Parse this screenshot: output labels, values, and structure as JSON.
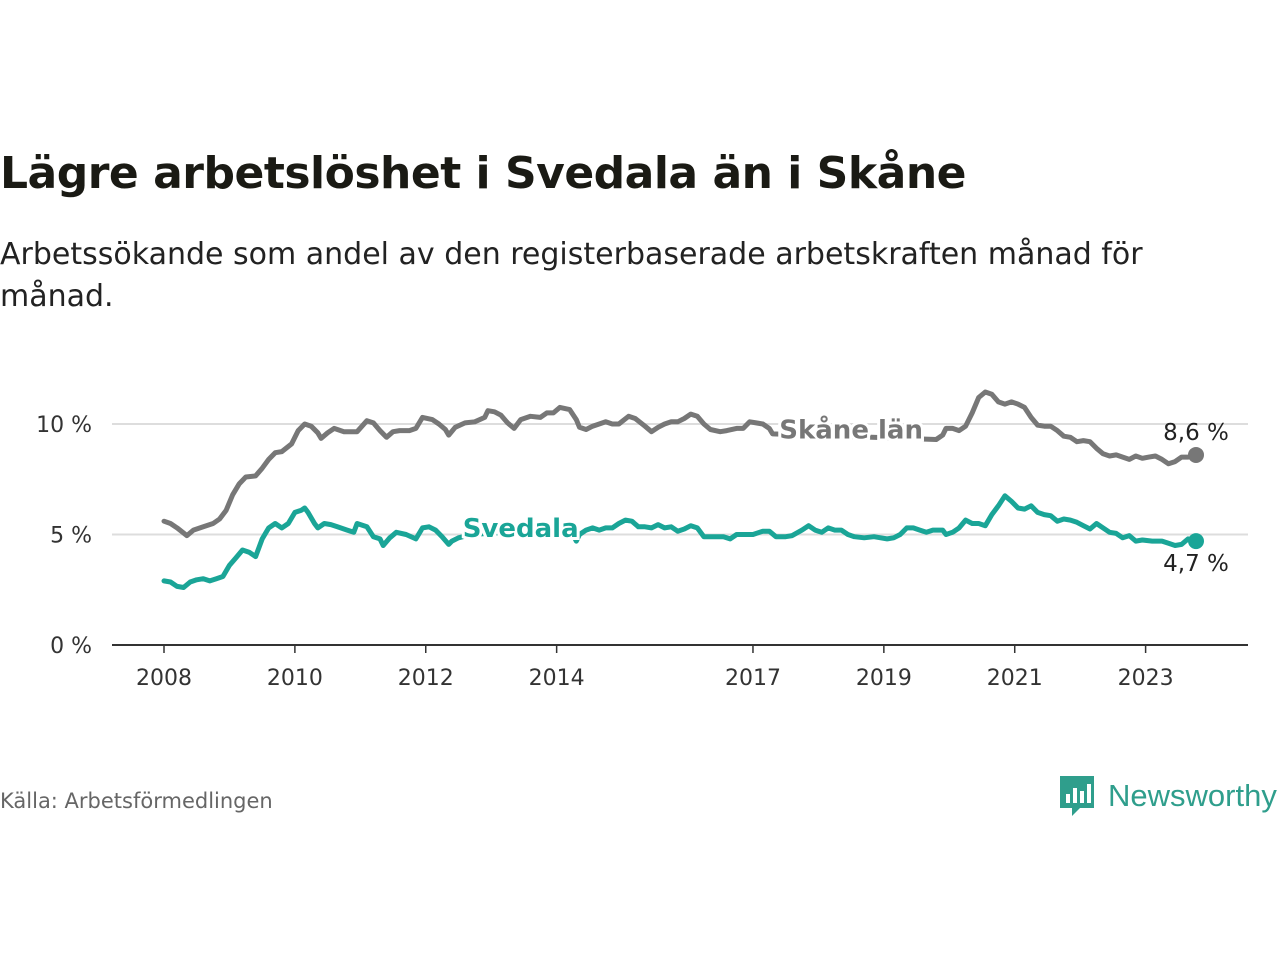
{
  "title": "Lägre arbetslöshet i Svedala än i Skåne",
  "subtitle": "Arbetssökande som andel av den registerbaserade arbetskraften månad för månad.",
  "source": "Källa: Arbetsförmedlingen",
  "brand": "Newsworthy",
  "colors": {
    "skane": "#777777",
    "svedala": "#1aa597",
    "brand": "#2f9e8c"
  },
  "chart_data": {
    "type": "line",
    "title": "Lägre arbetslöshet i Svedala än i Skåne",
    "ylim": [
      0,
      12
    ],
    "xlim": [
      2008,
      2024.6
    ],
    "yticks": [
      {
        "value": 0,
        "label": "0 %"
      },
      {
        "value": 5,
        "label": "5 %"
      },
      {
        "value": 10,
        "label": "10 %"
      }
    ],
    "xticks": [
      {
        "value": 2008,
        "label": "2008"
      },
      {
        "value": 2010,
        "label": "2010"
      },
      {
        "value": 2012,
        "label": "2012"
      },
      {
        "value": 2014,
        "label": "2014"
      },
      {
        "value": 2017,
        "label": "2017"
      },
      {
        "value": 2019,
        "label": "2019"
      },
      {
        "value": 2021,
        "label": "2021"
      },
      {
        "value": 2023,
        "label": "2023"
      }
    ],
    "series": [
      {
        "name": "Skåne län",
        "color": "#777777",
        "end_label": "8,6 %",
        "points": [
          [
            2008.0,
            5.6
          ],
          [
            2008.1,
            5.5
          ],
          [
            2008.2,
            5.3
          ],
          [
            2008.35,
            4.95
          ],
          [
            2008.45,
            5.2
          ],
          [
            2008.6,
            5.35
          ],
          [
            2008.75,
            5.5
          ],
          [
            2008.85,
            5.7
          ],
          [
            2008.95,
            6.1
          ],
          [
            2009.05,
            6.8
          ],
          [
            2009.15,
            7.3
          ],
          [
            2009.25,
            7.6
          ],
          [
            2009.4,
            7.65
          ],
          [
            2009.5,
            8.0
          ],
          [
            2009.6,
            8.4
          ],
          [
            2009.7,
            8.7
          ],
          [
            2009.8,
            8.75
          ],
          [
            2009.95,
            9.1
          ],
          [
            2010.05,
            9.7
          ],
          [
            2010.15,
            10.0
          ],
          [
            2010.25,
            9.9
          ],
          [
            2010.35,
            9.6
          ],
          [
            2010.4,
            9.35
          ],
          [
            2010.5,
            9.6
          ],
          [
            2010.6,
            9.8
          ],
          [
            2010.75,
            9.65
          ],
          [
            2010.95,
            9.65
          ],
          [
            2011.1,
            10.15
          ],
          [
            2011.2,
            10.05
          ],
          [
            2011.3,
            9.7
          ],
          [
            2011.4,
            9.4
          ],
          [
            2011.5,
            9.65
          ],
          [
            2011.6,
            9.7
          ],
          [
            2011.75,
            9.7
          ],
          [
            2011.85,
            9.8
          ],
          [
            2011.95,
            10.3
          ],
          [
            2012.1,
            10.2
          ],
          [
            2012.2,
            10.0
          ],
          [
            2012.3,
            9.75
          ],
          [
            2012.35,
            9.5
          ],
          [
            2012.45,
            9.85
          ],
          [
            2012.6,
            10.05
          ],
          [
            2012.75,
            10.1
          ],
          [
            2012.9,
            10.3
          ],
          [
            2012.95,
            10.6
          ],
          [
            2013.05,
            10.55
          ],
          [
            2013.15,
            10.4
          ],
          [
            2013.25,
            10.05
          ],
          [
            2013.35,
            9.8
          ],
          [
            2013.45,
            10.2
          ],
          [
            2013.6,
            10.35
          ],
          [
            2013.75,
            10.3
          ],
          [
            2013.85,
            10.5
          ],
          [
            2013.95,
            10.5
          ],
          [
            2014.05,
            10.75
          ],
          [
            2014.2,
            10.65
          ],
          [
            2014.3,
            10.2
          ],
          [
            2014.35,
            9.85
          ],
          [
            2014.45,
            9.75
          ],
          [
            2014.55,
            9.9
          ],
          [
            2014.65,
            10.0
          ],
          [
            2014.75,
            10.1
          ],
          [
            2014.85,
            10.0
          ],
          [
            2014.95,
            10.0
          ],
          [
            2015.1,
            10.35
          ],
          [
            2015.2,
            10.25
          ],
          [
            2015.35,
            9.9
          ],
          [
            2015.45,
            9.65
          ],
          [
            2015.55,
            9.85
          ],
          [
            2015.65,
            10.0
          ],
          [
            2015.75,
            10.1
          ],
          [
            2015.85,
            10.1
          ],
          [
            2015.95,
            10.25
          ],
          [
            2016.05,
            10.45
          ],
          [
            2016.15,
            10.35
          ],
          [
            2016.25,
            10.0
          ],
          [
            2016.35,
            9.75
          ],
          [
            2016.5,
            9.65
          ],
          [
            2016.6,
            9.7
          ],
          [
            2016.75,
            9.8
          ],
          [
            2016.85,
            9.8
          ],
          [
            2016.95,
            10.1
          ],
          [
            2017.05,
            10.05
          ],
          [
            2017.15,
            10.0
          ],
          [
            2017.25,
            9.8
          ],
          [
            2017.3,
            9.55
          ],
          [
            2019.8,
            9.3
          ],
          [
            2019.9,
            9.5
          ],
          [
            2019.95,
            9.8
          ],
          [
            2020.05,
            9.8
          ],
          [
            2020.15,
            9.7
          ],
          [
            2020.25,
            9.9
          ],
          [
            2020.35,
            10.5
          ],
          [
            2020.45,
            11.2
          ],
          [
            2020.55,
            11.45
          ],
          [
            2020.65,
            11.35
          ],
          [
            2020.75,
            11.0
          ],
          [
            2020.85,
            10.9
          ],
          [
            2020.95,
            11.0
          ],
          [
            2021.05,
            10.9
          ],
          [
            2021.15,
            10.75
          ],
          [
            2021.25,
            10.3
          ],
          [
            2021.35,
            9.95
          ],
          [
            2021.45,
            9.9
          ],
          [
            2021.55,
            9.9
          ],
          [
            2021.65,
            9.7
          ],
          [
            2021.75,
            9.45
          ],
          [
            2021.85,
            9.4
          ],
          [
            2021.95,
            9.2
          ],
          [
            2022.05,
            9.25
          ],
          [
            2022.15,
            9.2
          ],
          [
            2022.25,
            8.9
          ],
          [
            2022.35,
            8.65
          ],
          [
            2022.45,
            8.55
          ],
          [
            2022.55,
            8.6
          ],
          [
            2022.65,
            8.5
          ],
          [
            2022.75,
            8.4
          ],
          [
            2022.85,
            8.55
          ],
          [
            2022.95,
            8.45
          ],
          [
            2023.05,
            8.5
          ],
          [
            2023.15,
            8.55
          ],
          [
            2023.25,
            8.4
          ],
          [
            2023.35,
            8.2
          ],
          [
            2023.45,
            8.3
          ],
          [
            2023.55,
            8.5
          ],
          [
            2023.65,
            8.5
          ],
          [
            2023.77,
            8.6
          ]
        ]
      },
      {
        "name": "Svedala",
        "color": "#1aa597",
        "end_label": "4,7 %",
        "points": [
          [
            2008.0,
            2.9
          ],
          [
            2008.1,
            2.85
          ],
          [
            2008.2,
            2.65
          ],
          [
            2008.3,
            2.6
          ],
          [
            2008.4,
            2.85
          ],
          [
            2008.5,
            2.95
          ],
          [
            2008.6,
            3.0
          ],
          [
            2008.7,
            2.9
          ],
          [
            2008.8,
            3.0
          ],
          [
            2008.9,
            3.1
          ],
          [
            2009.0,
            3.6
          ],
          [
            2009.1,
            3.95
          ],
          [
            2009.2,
            4.3
          ],
          [
            2009.3,
            4.2
          ],
          [
            2009.4,
            4.0
          ],
          [
            2009.5,
            4.8
          ],
          [
            2009.6,
            5.3
          ],
          [
            2009.7,
            5.5
          ],
          [
            2009.8,
            5.3
          ],
          [
            2009.9,
            5.5
          ],
          [
            2010.0,
            6.0
          ],
          [
            2010.1,
            6.1
          ],
          [
            2010.15,
            6.2
          ],
          [
            2010.2,
            6.0
          ],
          [
            2010.3,
            5.5
          ],
          [
            2010.35,
            5.3
          ],
          [
            2010.45,
            5.5
          ],
          [
            2010.55,
            5.45
          ],
          [
            2010.65,
            5.35
          ],
          [
            2010.8,
            5.2
          ],
          [
            2010.9,
            5.1
          ],
          [
            2010.95,
            5.5
          ],
          [
            2011.1,
            5.35
          ],
          [
            2011.2,
            4.9
          ],
          [
            2011.3,
            4.8
          ],
          [
            2011.35,
            4.5
          ],
          [
            2011.45,
            4.85
          ],
          [
            2011.55,
            5.1
          ],
          [
            2011.7,
            5.0
          ],
          [
            2011.85,
            4.8
          ],
          [
            2011.95,
            5.3
          ],
          [
            2012.05,
            5.35
          ],
          [
            2012.15,
            5.2
          ],
          [
            2012.25,
            4.9
          ],
          [
            2012.35,
            4.55
          ],
          [
            2012.4,
            4.7
          ],
          [
            2012.5,
            4.85
          ],
          [
            2012.7,
            5.0
          ],
          [
            2014.2,
            5.3
          ],
          [
            2014.3,
            4.7
          ],
          [
            2014.35,
            5.0
          ],
          [
            2014.45,
            5.2
          ],
          [
            2014.55,
            5.3
          ],
          [
            2014.65,
            5.2
          ],
          [
            2014.75,
            5.3
          ],
          [
            2014.85,
            5.3
          ],
          [
            2014.95,
            5.5
          ],
          [
            2015.05,
            5.65
          ],
          [
            2015.15,
            5.6
          ],
          [
            2015.25,
            5.35
          ],
          [
            2015.35,
            5.35
          ],
          [
            2015.45,
            5.3
          ],
          [
            2015.55,
            5.45
          ],
          [
            2015.65,
            5.3
          ],
          [
            2015.75,
            5.35
          ],
          [
            2015.85,
            5.15
          ],
          [
            2015.95,
            5.25
          ],
          [
            2016.05,
            5.4
          ],
          [
            2016.15,
            5.3
          ],
          [
            2016.25,
            4.9
          ],
          [
            2016.4,
            4.9
          ],
          [
            2016.55,
            4.9
          ],
          [
            2016.65,
            4.8
          ],
          [
            2016.75,
            5.0
          ],
          [
            2016.9,
            5.0
          ],
          [
            2017.0,
            5.0
          ],
          [
            2017.15,
            5.15
          ],
          [
            2017.25,
            5.15
          ],
          [
            2017.35,
            4.9
          ],
          [
            2017.5,
            4.9
          ],
          [
            2017.6,
            4.95
          ],
          [
            2017.75,
            5.2
          ],
          [
            2017.85,
            5.4
          ],
          [
            2017.95,
            5.2
          ],
          [
            2018.05,
            5.1
          ],
          [
            2018.15,
            5.3
          ],
          [
            2018.25,
            5.2
          ],
          [
            2018.35,
            5.2
          ],
          [
            2018.45,
            5.0
          ],
          [
            2018.55,
            4.9
          ],
          [
            2018.7,
            4.85
          ],
          [
            2018.85,
            4.9
          ],
          [
            2018.95,
            4.85
          ],
          [
            2019.05,
            4.8
          ],
          [
            2019.15,
            4.85
          ],
          [
            2019.25,
            5.0
          ],
          [
            2019.35,
            5.3
          ],
          [
            2019.45,
            5.3
          ],
          [
            2019.55,
            5.2
          ],
          [
            2019.65,
            5.1
          ],
          [
            2019.75,
            5.2
          ],
          [
            2019.9,
            5.2
          ],
          [
            2019.95,
            5.0
          ],
          [
            2020.05,
            5.1
          ],
          [
            2020.15,
            5.3
          ],
          [
            2020.25,
            5.65
          ],
          [
            2020.35,
            5.5
          ],
          [
            2020.45,
            5.5
          ],
          [
            2020.55,
            5.4
          ],
          [
            2020.65,
            5.9
          ],
          [
            2020.75,
            6.3
          ],
          [
            2020.85,
            6.75
          ],
          [
            2020.95,
            6.5
          ],
          [
            2021.05,
            6.2
          ],
          [
            2021.15,
            6.15
          ],
          [
            2021.25,
            6.3
          ],
          [
            2021.35,
            6.0
          ],
          [
            2021.45,
            5.9
          ],
          [
            2021.55,
            5.85
          ],
          [
            2021.65,
            5.6
          ],
          [
            2021.75,
            5.7
          ],
          [
            2021.85,
            5.65
          ],
          [
            2021.95,
            5.55
          ],
          [
            2022.05,
            5.4
          ],
          [
            2022.15,
            5.25
          ],
          [
            2022.25,
            5.5
          ],
          [
            2022.35,
            5.3
          ],
          [
            2022.45,
            5.1
          ],
          [
            2022.55,
            5.05
          ],
          [
            2022.65,
            4.85
          ],
          [
            2022.75,
            4.95
          ],
          [
            2022.85,
            4.7
          ],
          [
            2022.95,
            4.75
          ],
          [
            2023.1,
            4.7
          ],
          [
            2023.25,
            4.7
          ],
          [
            2023.35,
            4.6
          ],
          [
            2023.45,
            4.5
          ],
          [
            2023.55,
            4.55
          ],
          [
            2023.65,
            4.8
          ],
          [
            2023.77,
            4.7
          ]
        ]
      }
    ],
    "annotations": [
      {
        "series": "Skåne län",
        "text": "Skåne län",
        "x": 2018.5,
        "y": 9.75
      },
      {
        "series": "Svedala",
        "text": "Svedala",
        "x": 2013.45,
        "y": 5.3
      }
    ]
  }
}
